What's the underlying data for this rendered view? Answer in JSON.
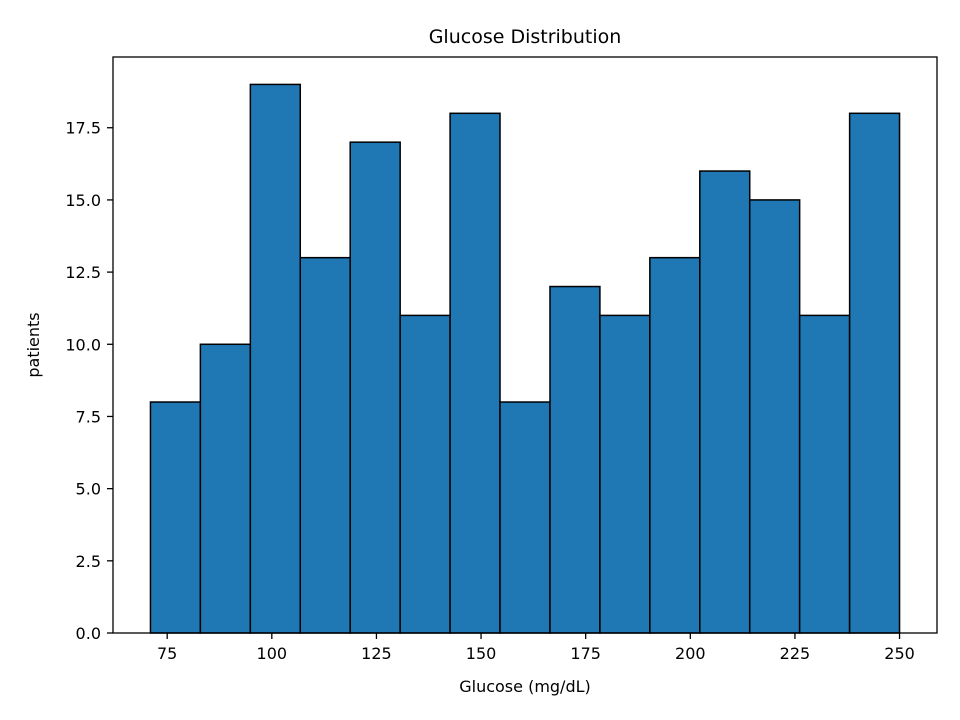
{
  "chart_data": {
    "type": "bar",
    "title": "Glucose Distribution",
    "xlabel": "Glucose (mg/dL)",
    "ylabel": "patients",
    "bin_edges": [
      71.0,
      82.93,
      94.87,
      106.8,
      118.73,
      130.67,
      142.6,
      154.53,
      166.47,
      178.4,
      190.33,
      202.27,
      214.2,
      226.13,
      238.07,
      250.0
    ],
    "values": [
      8,
      10,
      19,
      13,
      17,
      11,
      18,
      8,
      12,
      11,
      13,
      16,
      15,
      11,
      18
    ],
    "xlim": [
      62.05,
      258.95
    ],
    "ylim": [
      0,
      19.95
    ],
    "xticks": [
      75,
      100,
      125,
      150,
      175,
      200,
      225,
      250
    ],
    "xtick_labels": [
      "75",
      "100",
      "125",
      "150",
      "175",
      "200",
      "225",
      "250"
    ],
    "yticks": [
      0,
      2.5,
      5,
      7.5,
      10,
      12.5,
      15,
      17.5
    ],
    "ytick_labels": [
      "0.0",
      "2.5",
      "5.0",
      "7.5",
      "10.0",
      "12.5",
      "15.0",
      "17.5"
    ],
    "bar_color": "#1f77b4",
    "edge_color": "#000000",
    "grid": false,
    "legend": "none"
  }
}
